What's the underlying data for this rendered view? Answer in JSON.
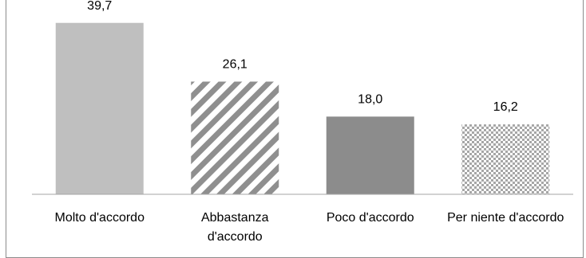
{
  "chart_data": {
    "type": "bar",
    "categories": [
      [
        "Molto d'accordo"
      ],
      [
        "Abbastanza",
        "d'accordo"
      ],
      [
        "Poco d'accordo"
      ],
      [
        "Per niente d'accordo"
      ]
    ],
    "values": [
      39.7,
      26.1,
      18.0,
      16.2
    ],
    "value_labels": [
      "39,7",
      "26,1",
      "18,0",
      "16,2"
    ],
    "bar_styles": [
      "solid-light",
      "diagonal-stripes",
      "solid-dark",
      "checker"
    ],
    "colors": {
      "solid-light": "#bfbfbf",
      "diagonal-stripes": "#8f8f8f",
      "solid-dark": "#8c8c8c",
      "checker": "#a6a6a6",
      "axis": "#a6a6a6"
    },
    "title": "",
    "xlabel": "",
    "ylabel": "",
    "ylim": [
      0,
      45
    ],
    "grid": false,
    "legend": "none"
  }
}
